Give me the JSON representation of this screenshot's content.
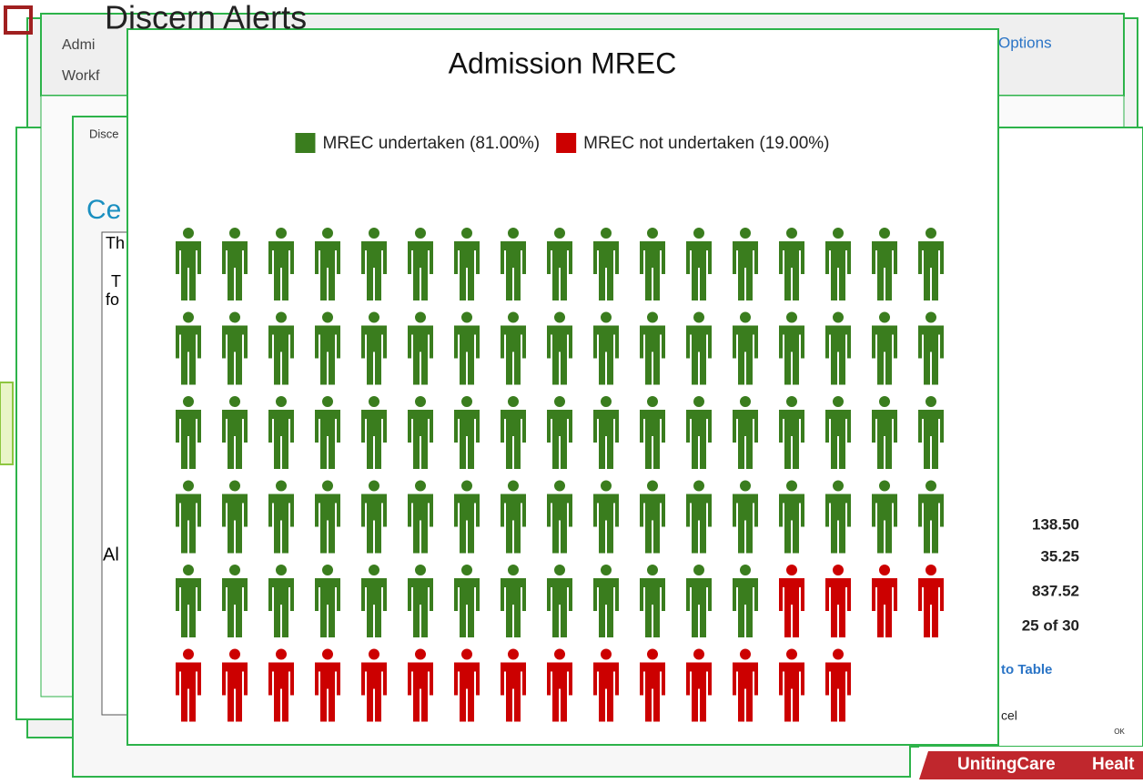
{
  "chart_data": {
    "type": "pictogram",
    "title": "Admission MREC",
    "per_row": 17,
    "series": [
      {
        "name": "MREC undertaken (81.00%)",
        "color": "#3a7d1e",
        "value": 81
      },
      {
        "name": "MREC not undertaken (19.00%)",
        "color": "#cc0000",
        "value": 19
      }
    ]
  },
  "background": {
    "texts": [
      "Discern Alerts",
      "Admi",
      "Workf",
      "Options",
      "Disce",
      "Ce",
      "Th",
      "T",
      "fo",
      "Al",
      "138.50",
      "35.25",
      "837.52",
      "25 of 30",
      "to Table",
      "cel",
      "OK",
      "UnitingCare",
      "Healt"
    ]
  }
}
